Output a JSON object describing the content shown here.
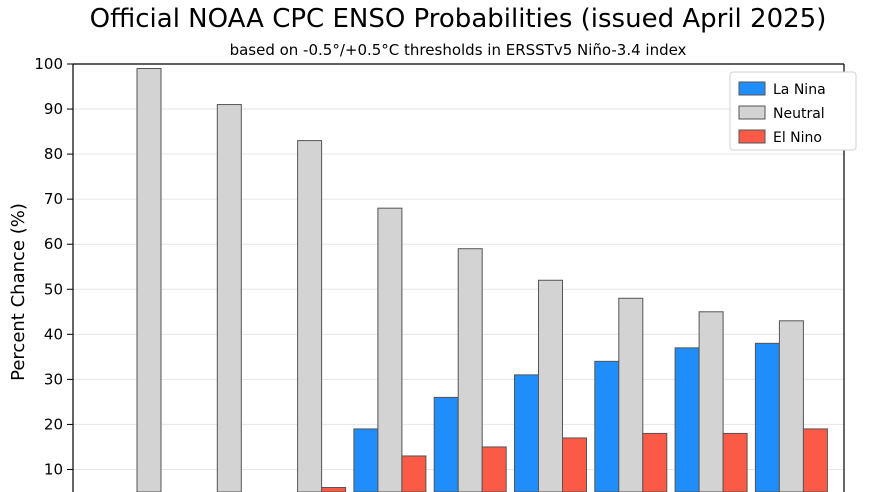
{
  "chart_data": {
    "type": "bar",
    "title": "Official NOAA CPC ENSO Probabilities (issued April 2025)",
    "subtitle": "based on -0.5°/+0.5°C thresholds in ERSSTv5 Niño-3.4 index",
    "ylabel": "Percent Chance (%)",
    "ylim": [
      5,
      100
    ],
    "yticks": [
      10,
      20,
      30,
      40,
      50,
      60,
      70,
      80,
      90,
      100
    ],
    "grid": true,
    "legend_position": "top-right",
    "series": [
      {
        "name": "La Nina",
        "color": "#1f8efa",
        "values": [
          0,
          1,
          1,
          19,
          26,
          31,
          34,
          37,
          38
        ]
      },
      {
        "name": "Neutral",
        "color": "#d3d3d3",
        "values": [
          99,
          91,
          83,
          68,
          59,
          52,
          48,
          45,
          43
        ]
      },
      {
        "name": "El Nino",
        "color": "#fa5a46",
        "values": [
          1,
          0,
          6,
          13,
          15,
          17,
          18,
          18,
          19
        ]
      }
    ]
  }
}
